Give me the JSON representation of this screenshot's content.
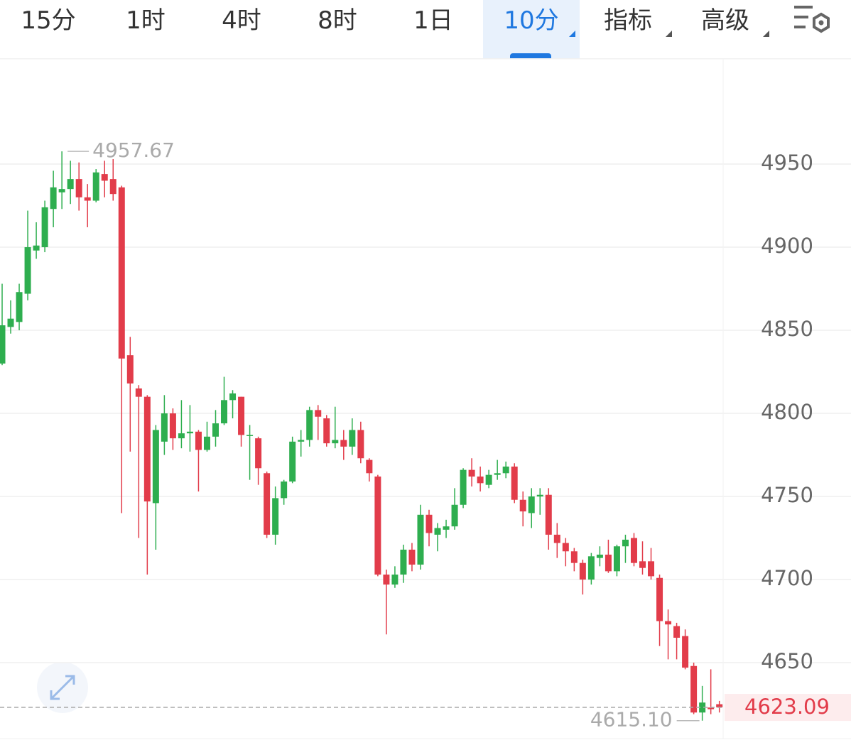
{
  "toolbar": {
    "tabs": [
      "15分",
      "1时",
      "4时",
      "8时",
      "1日",
      "10分",
      "指标",
      "高级"
    ],
    "active": 5
  },
  "chart_data": {
    "type": "candlestick",
    "ylim": [
      4604.3,
      5013.7
    ],
    "yticks": [
      4650,
      4700,
      4750,
      4800,
      4850,
      4900,
      4950
    ],
    "grid": true,
    "up_color": "#2eae4f",
    "down_color": "#e23c4a",
    "open": [
      4830,
      4852,
      4855,
      4872,
      4898,
      4900,
      4923,
      4933,
      4935,
      4941,
      4930,
      4928,
      4944,
      4941,
      4936,
      4835,
      4815,
      4810,
      4746,
      4783,
      4800,
      4785,
      4788,
      4789,
      4778,
      4786,
      4794,
      4808,
      4810,
      4787,
      4785,
      4764,
      4727,
      4749,
      4759,
      4783,
      4784,
      4802,
      4797,
      4782,
      4784,
      4780,
      4790,
      4772,
      4762,
      4703,
      4697,
      4703,
      4718,
      4709,
      4739,
      4727,
      4730,
      4732,
      4745,
      4766,
      4762,
      4757,
      4763,
      4764,
      4768,
      4748,
      4740,
      4750,
      4751,
      4727,
      4722,
      4717,
      4710,
      4700,
      4713,
      4715,
      4705,
      4720,
      4725,
      4711,
      4711,
      4701,
      4675,
      4672,
      4666,
      4648,
      4620,
      4623,
      4625
    ],
    "high": [
      4878,
      4868,
      4878,
      4922,
      4915,
      4928,
      4946,
      4957.67,
      4952,
      4951,
      4938,
      4947,
      4952,
      4953,
      4937,
      4846,
      4817,
      4811,
      4793,
      4811,
      4803,
      4808,
      4805,
      4790,
      4795,
      4802,
      4822,
      4814,
      4810,
      4793,
      4786,
      4765,
      4756,
      4760,
      4786,
      4790,
      4804,
      4805,
      4799,
      4804,
      4790,
      4797,
      4795,
      4773,
      4763,
      4706,
      4708,
      4721,
      4722,
      4745,
      4742,
      4734,
      4736,
      4755,
      4767,
      4773,
      4768,
      4766,
      4772,
      4771,
      4770,
      4753,
      4755,
      4755,
      4755,
      4734,
      4725,
      4719,
      4712,
      4716,
      4720,
      4724,
      4721,
      4727,
      4728,
      4723,
      4719,
      4703,
      4682,
      4674,
      4670,
      4650,
      4636,
      4646,
      4627
    ],
    "low": [
      4829,
      4848,
      4850,
      4868,
      4893,
      4897,
      4912,
      4923,
      4926,
      4922,
      4912,
      4927,
      4930,
      4928,
      4740,
      4777,
      4725,
      4703,
      4718,
      4775,
      4778,
      4779,
      4777,
      4753,
      4777,
      4780,
      4793,
      4797,
      4780,
      4760,
      4757,
      4725,
      4721,
      4745,
      4758,
      4774,
      4780,
      4784,
      4780,
      4779,
      4772,
      4775,
      4770,
      4759,
      4702,
      4667,
      4695,
      4698,
      4705,
      4706,
      4720,
      4717,
      4725,
      4730,
      4743,
      4756,
      4753,
      4755,
      4760,
      4761,
      4746,
      4732,
      4731,
      4739,
      4718,
      4713,
      4708,
      4705,
      4691,
      4697,
      4708,
      4704,
      4702,
      4710,
      4708,
      4703,
      4700,
      4660,
      4652,
      4652,
      4646,
      4619,
      4615.1,
      4619,
      4620
    ],
    "close": [
      4853,
      4857,
      4873,
      4900,
      4901,
      4924,
      4936,
      4935,
      4941,
      4930,
      4928,
      4945,
      4940,
      4932,
      4833,
      4818,
      4810,
      4747,
      4790,
      4800,
      4785,
      4788,
      4789,
      4778,
      4786,
      4794,
      4808,
      4812,
      4787,
      4787,
      4767,
      4727,
      4749,
      4759,
      4783,
      4784,
      4802,
      4798,
      4782,
      4784,
      4780,
      4790,
      4773,
      4764,
      4703,
      4697,
      4703,
      4718,
      4709,
      4739,
      4728,
      4731,
      4732,
      4745,
      4766,
      4762,
      4758,
      4763,
      4764,
      4768,
      4748,
      4741,
      4750,
      4751,
      4727,
      4722,
      4717,
      4710,
      4700,
      4714,
      4715,
      4705,
      4720,
      4724,
      4710,
      4707,
      4702,
      4675,
      4673,
      4665,
      4647,
      4620,
      4626,
      4622,
      4623.09
    ],
    "max_label": 4957.67,
    "min_label": {
      "value": 4615.1,
      "label": "4615.10"
    },
    "last_price": {
      "value": 4623.09,
      "label": "4623.09",
      "color": "#e23c4a"
    }
  }
}
